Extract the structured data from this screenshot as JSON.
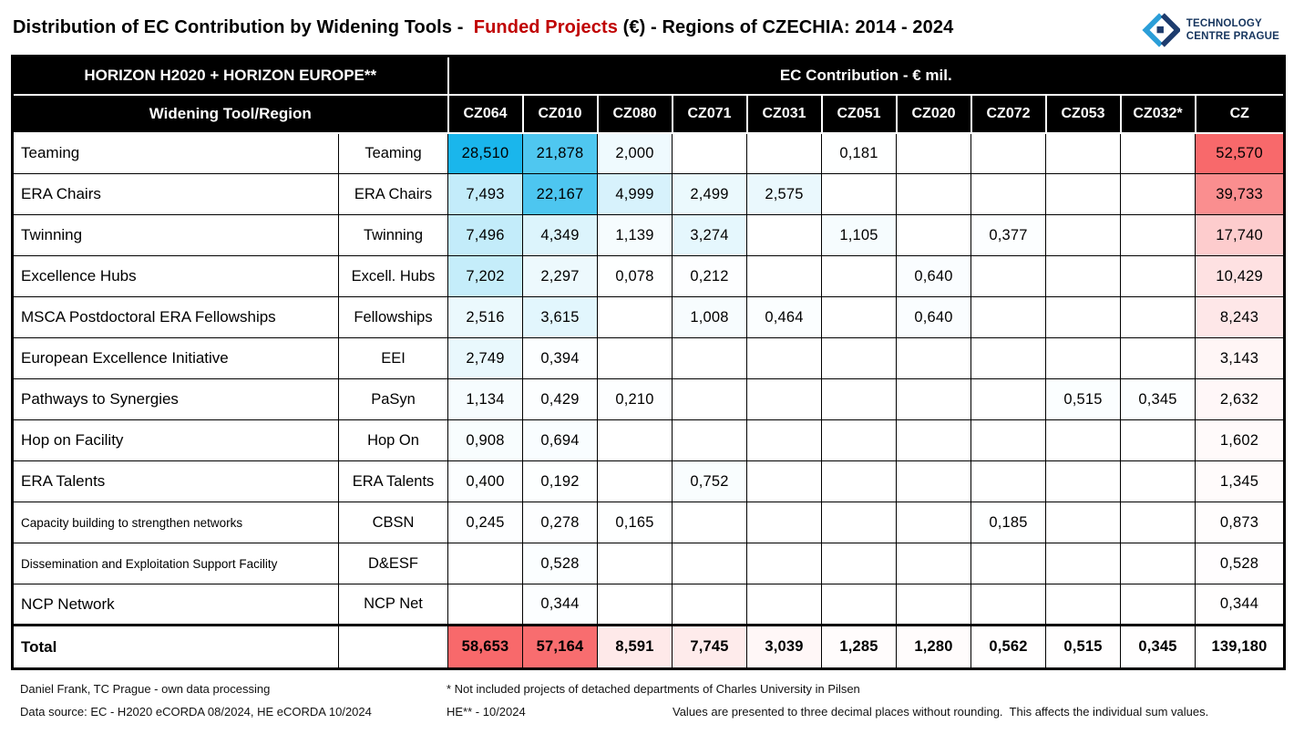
{
  "title": {
    "part1": "Distribution of EC Contribution by Widening Tools -  ",
    "highlight": "Funded Projects",
    "part2": " (€) - Regions of CZECHIA: 2014 - 2024"
  },
  "logo": {
    "line1": "TECHNOLOGY",
    "line2": "CENTRE PRAGUE"
  },
  "colors": {
    "title_highlight": "#c00000",
    "header_bg": "#000000",
    "header_text": "#ffffff",
    "heat_blue": "#1ab6ec",
    "heat_red": "#f8696b",
    "logo_navy": "#1d3c6e",
    "logo_blue": "#2b9ed8"
  },
  "chart_data": {
    "type": "table",
    "title": "Distribution of EC Contribution by Widening Tools - Funded Projects (€) - Regions of CZECHIA: 2014 - 2024",
    "header_left": "HORIZON H2020 + HORIZON EUROPE**",
    "header_right": "EC Contribution - € mil.",
    "row_header": "Widening Tool/Region",
    "columns": [
      "CZ064",
      "CZ010",
      "CZ080",
      "CZ071",
      "CZ031",
      "CZ051",
      "CZ020",
      "CZ072",
      "CZ053",
      "CZ032*",
      "CZ"
    ],
    "rows": [
      {
        "name": "Teaming",
        "short": "Teaming",
        "small": false,
        "values": [
          "28,510",
          "21,878",
          "2,000",
          "",
          "",
          "0,181",
          "",
          "",
          "",
          "",
          "52,570"
        ]
      },
      {
        "name": "ERA Chairs",
        "short": "ERA Chairs",
        "small": false,
        "values": [
          "7,493",
          "22,167",
          "4,999",
          "2,499",
          "2,575",
          "",
          "",
          "",
          "",
          "",
          "39,733"
        ]
      },
      {
        "name": "Twinning",
        "short": "Twinning",
        "small": false,
        "values": [
          "7,496",
          "4,349",
          "1,139",
          "3,274",
          "",
          "1,105",
          "",
          "0,377",
          "",
          "",
          "17,740"
        ]
      },
      {
        "name": "Excellence Hubs",
        "short": "Excell. Hubs",
        "small": false,
        "values": [
          "7,202",
          "2,297",
          "0,078",
          "0,212",
          "",
          "",
          "0,640",
          "",
          "",
          "",
          "10,429"
        ]
      },
      {
        "name": "MSCA Postdoctoral ERA Fellowships",
        "short": "Fellowships",
        "small": false,
        "values": [
          "2,516",
          "3,615",
          "",
          "1,008",
          "0,464",
          "",
          "0,640",
          "",
          "",
          "",
          "8,243"
        ]
      },
      {
        "name": "European Excellence Initiative",
        "short": "EEI",
        "small": false,
        "values": [
          "2,749",
          "0,394",
          "",
          "",
          "",
          "",
          "",
          "",
          "",
          "",
          "3,143"
        ]
      },
      {
        "name": "Pathways to Synergies",
        "short": "PaSyn",
        "small": false,
        "values": [
          "1,134",
          "0,429",
          "0,210",
          "",
          "",
          "",
          "",
          "",
          "0,515",
          "0,345",
          "2,632"
        ]
      },
      {
        "name": "Hop on Facility",
        "short": "Hop On",
        "small": false,
        "values": [
          "0,908",
          "0,694",
          "",
          "",
          "",
          "",
          "",
          "",
          "",
          "",
          "1,602"
        ]
      },
      {
        "name": "ERA Talents",
        "short": "ERA Talents",
        "small": false,
        "values": [
          "0,400",
          "0,192",
          "",
          "0,752",
          "",
          "",
          "",
          "",
          "",
          "",
          "1,345"
        ]
      },
      {
        "name": "Capacity building to strengthen networks",
        "short": "CBSN",
        "small": true,
        "values": [
          "0,245",
          "0,278",
          "0,165",
          "",
          "",
          "",
          "",
          "0,185",
          "",
          "",
          "0,873"
        ]
      },
      {
        "name": "Dissemination and Exploitation Support Facility",
        "short": "D&ESF",
        "small": true,
        "values": [
          "",
          "0,528",
          "",
          "",
          "",
          "",
          "",
          "",
          "",
          "",
          "0,528"
        ]
      },
      {
        "name": "NCP Network",
        "short": "NCP Net",
        "small": false,
        "values": [
          "",
          "0,344",
          "",
          "",
          "",
          "",
          "",
          "",
          "",
          "",
          "0,344"
        ]
      }
    ],
    "total": {
      "name": "Total",
      "values": [
        "58,653",
        "57,164",
        "8,591",
        "7,745",
        "3,039",
        "1,285",
        "1,280",
        "0,562",
        "0,515",
        "0,345",
        "139,180"
      ]
    }
  },
  "footer": {
    "author": "Daniel Frank, TC Prague - own data processing",
    "source": "Data source: EC - H2020 eCORDA 08/2024, HE eCORDA 10/2024",
    "star_note": "* Not included projects of detached departments of Charles University in Pilsen",
    "he_note": "HE** - 10/2024",
    "rounding_note": "Values are presented to three decimal places without rounding.  This affects the individual sum values."
  }
}
